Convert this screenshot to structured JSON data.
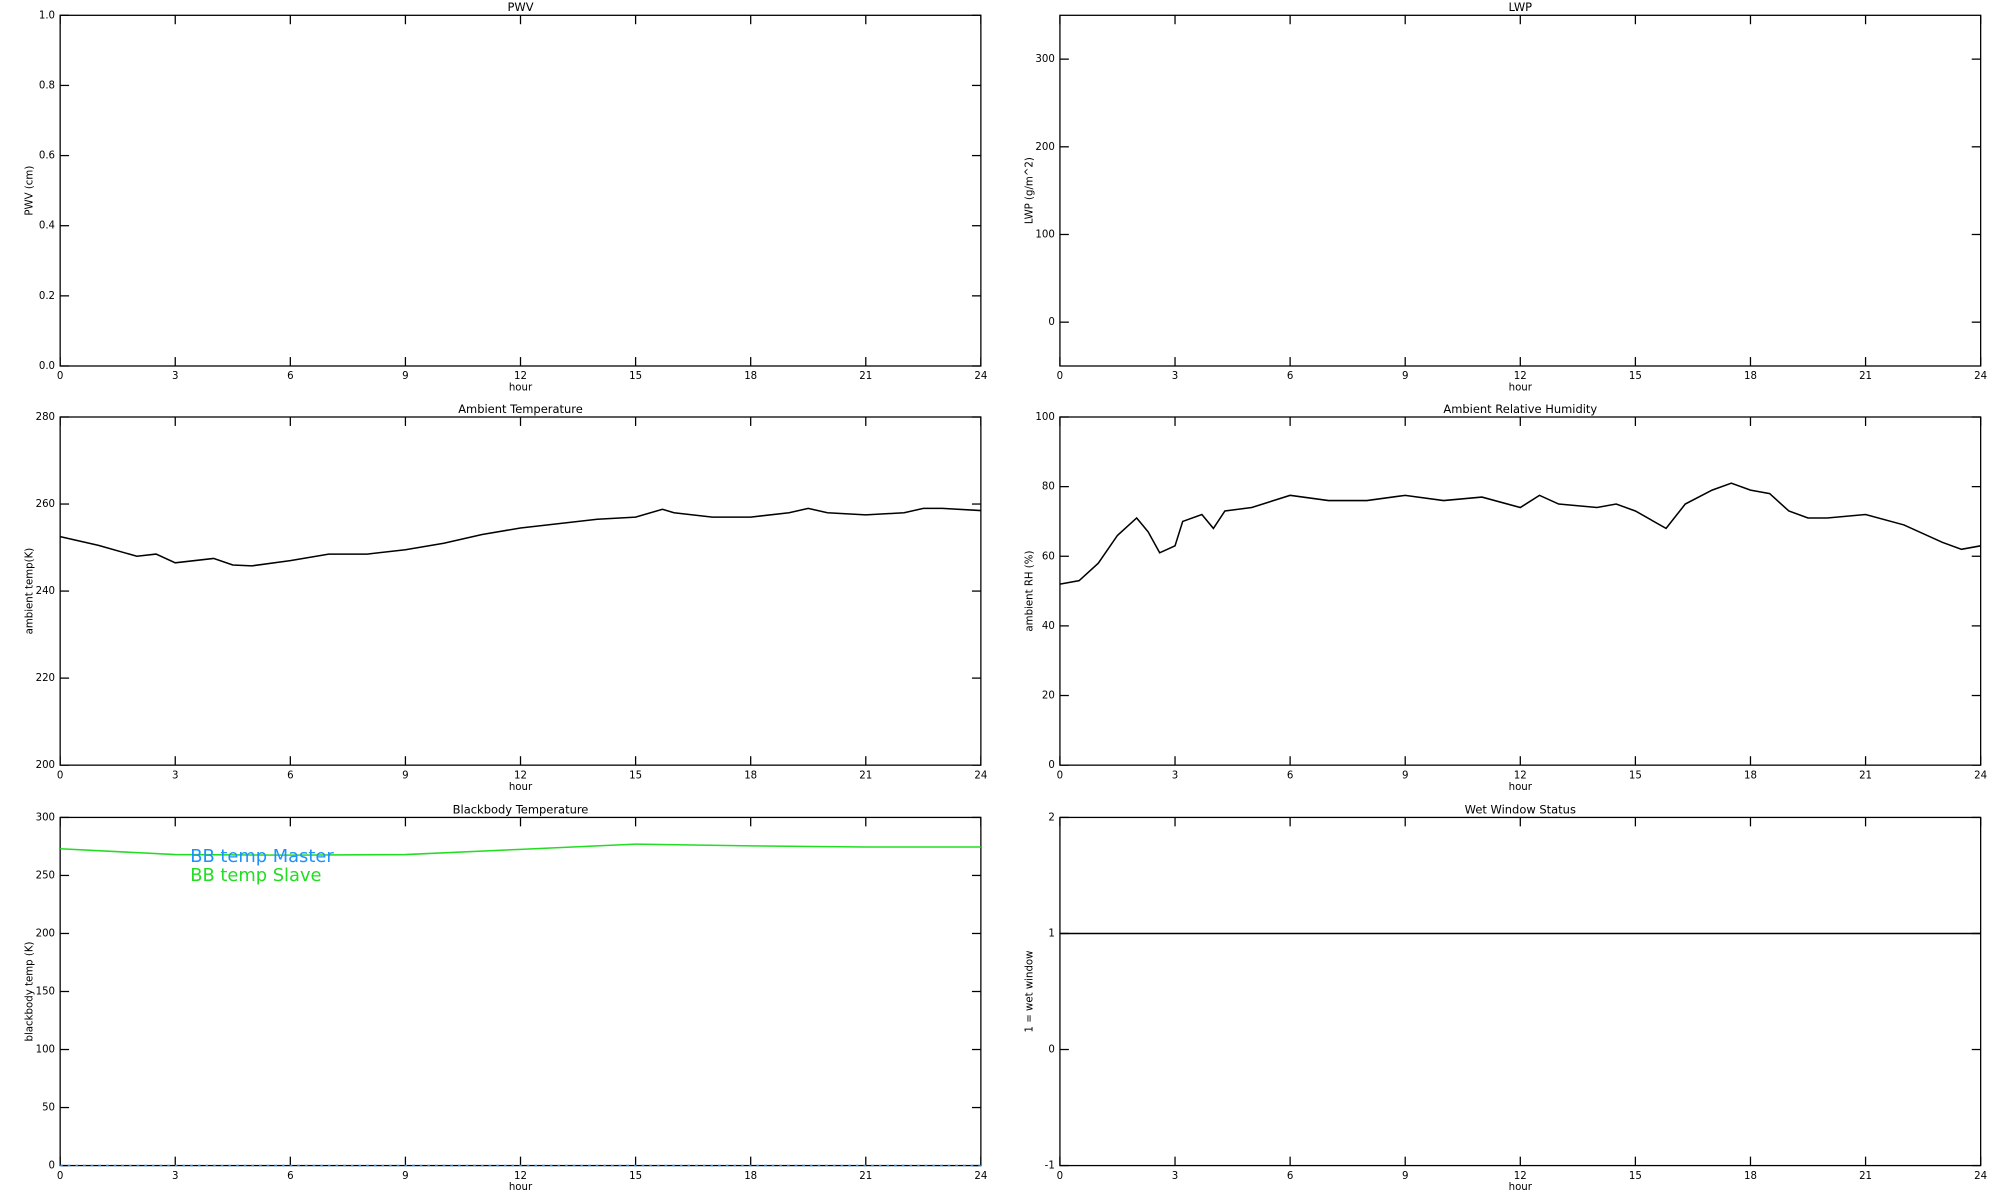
{
  "chart_data": [
    {
      "type": "line",
      "title": "PWV",
      "xlabel": "hour",
      "ylabel": "PWV (cm)",
      "xlim": [
        0,
        24
      ],
      "xticks": [
        0,
        3,
        6,
        9,
        12,
        15,
        18,
        21,
        24
      ],
      "ylim": [
        0,
        1
      ],
      "yticks": [
        {
          "value": 0,
          "label": "0.0"
        },
        0.2,
        0.4,
        0.6,
        0.8,
        {
          "value": 1,
          "label": "1.0"
        }
      ]
    },
    {
      "type": "line",
      "title": "LWP",
      "xlabel": "hour",
      "ylabel": "LWP (g/m^2)",
      "xlim": [
        0,
        24
      ],
      "xticks": [
        0,
        3,
        6,
        9,
        12,
        15,
        18,
        21,
        24
      ],
      "ylim": [
        -50,
        350
      ],
      "yticks": [
        0,
        100,
        200,
        300
      ]
    },
    {
      "type": "line",
      "title": "Ambient Temperature",
      "xlabel": "hour",
      "ylabel": "ambient temp(K)",
      "xlim": [
        0,
        24
      ],
      "xticks": [
        0,
        3,
        6,
        9,
        12,
        15,
        18,
        21,
        24
      ],
      "ylim": [
        200,
        280
      ],
      "yticks": [
        200,
        220,
        240,
        260,
        280
      ],
      "x": [
        0,
        1,
        2,
        2.5,
        3,
        4,
        4.5,
        5,
        6,
        7,
        8,
        9,
        10,
        11,
        12,
        13,
        14,
        15,
        15.7,
        16,
        17,
        18,
        19,
        19.5,
        20,
        21,
        22,
        22.5,
        23,
        24
      ],
      "series": [
        {
          "color": "#000000",
          "values": [
            252.5,
            250.5,
            248,
            248.5,
            246.5,
            247.5,
            246,
            245.8,
            247,
            248.5,
            248.5,
            249.5,
            251,
            253,
            254.5,
            255.5,
            256.5,
            257,
            258.8,
            258,
            257,
            257,
            258,
            259,
            258,
            257.5,
            258,
            259,
            259,
            258.5
          ]
        }
      ]
    },
    {
      "type": "line",
      "title": "Ambient Relative Humidity",
      "xlabel": "hour",
      "ylabel": "ambient RH (%)",
      "xlim": [
        0,
        24
      ],
      "xticks": [
        0,
        3,
        6,
        9,
        12,
        15,
        18,
        21,
        24
      ],
      "ylim": [
        0,
        100
      ],
      "yticks": [
        0,
        20,
        40,
        60,
        80,
        100
      ],
      "x": [
        0,
        0.5,
        1,
        1.5,
        2,
        2.3,
        2.6,
        3,
        3.2,
        3.7,
        4,
        4.3,
        5,
        6,
        7,
        8,
        9,
        10,
        11,
        12,
        12.5,
        13,
        14,
        14.5,
        15,
        15.8,
        16.3,
        17,
        17.5,
        18,
        18.5,
        19,
        19.5,
        20,
        21,
        22,
        23,
        23.5,
        24
      ],
      "series": [
        {
          "color": "#000000",
          "values": [
            52,
            53,
            58,
            66,
            71,
            67,
            61,
            63,
            70,
            72,
            68,
            73,
            74,
            77.5,
            76,
            76,
            77.5,
            76,
            77,
            74,
            77.5,
            75,
            74,
            75,
            73,
            68,
            75,
            79,
            81,
            79,
            78,
            73,
            71,
            71,
            72,
            69,
            64,
            62,
            63
          ]
        }
      ]
    },
    {
      "type": "line",
      "title": "Blackbody Temperature",
      "xlabel": "hour",
      "ylabel": "blackbody temp (K)",
      "xlim": [
        0,
        24
      ],
      "xticks": [
        0,
        3,
        6,
        9,
        12,
        15,
        18,
        21,
        24
      ],
      "ylim": [
        0,
        300
      ],
      "yticks": [
        0,
        50,
        100,
        150,
        200,
        250,
        300
      ],
      "legend": "upper left",
      "x": [
        0,
        3,
        6,
        9,
        12,
        15,
        18,
        21,
        24
      ],
      "series": [
        {
          "name": "BB temp Master",
          "color": "#1e90ff",
          "values": [
            0,
            0,
            0,
            0,
            0,
            0,
            0,
            0,
            0
          ]
        },
        {
          "name": "BB temp Slave",
          "color": "#22dd22",
          "values": [
            273,
            268,
            267.5,
            268,
            272.5,
            277,
            275.5,
            274.5,
            274.5
          ]
        }
      ]
    },
    {
      "type": "line",
      "title": "Wet Window Status",
      "xlabel": "hour",
      "ylabel": "1 = wet window",
      "xlim": [
        0,
        24
      ],
      "xticks": [
        0,
        3,
        6,
        9,
        12,
        15,
        18,
        21,
        24
      ],
      "ylim": [
        -1,
        2
      ],
      "yticks": [
        -1,
        0,
        1,
        2
      ],
      "x": [
        0,
        24
      ],
      "series": [
        {
          "color": "#000000",
          "values": [
            1,
            1
          ]
        }
      ]
    }
  ]
}
